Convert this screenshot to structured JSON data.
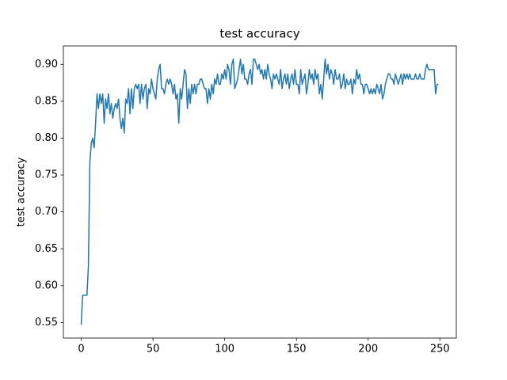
{
  "chart_data": {
    "type": "line",
    "title": "test accuracy",
    "y_label": "test accuracy",
    "color": "#1f77b4",
    "x": [
      0,
      1,
      2,
      3,
      4,
      5,
      6,
      7,
      8,
      9,
      10,
      11,
      12,
      13,
      14,
      15,
      16,
      17,
      18,
      19,
      20,
      21,
      22,
      23,
      24,
      25,
      26,
      27,
      28,
      29,
      30,
      31,
      32,
      33,
      34,
      35,
      36,
      37,
      38,
      39,
      40,
      41,
      42,
      43,
      44,
      45,
      46,
      47,
      48,
      49,
      50,
      51,
      52,
      53,
      54,
      55,
      56,
      57,
      58,
      59,
      60,
      61,
      62,
      63,
      64,
      65,
      66,
      67,
      68,
      69,
      70,
      71,
      72,
      73,
      74,
      75,
      76,
      77,
      78,
      79,
      80,
      81,
      82,
      83,
      84,
      85,
      86,
      87,
      88,
      89,
      90,
      91,
      92,
      93,
      94,
      95,
      96,
      97,
      98,
      99,
      100,
      101,
      102,
      103,
      104,
      105,
      106,
      107,
      108,
      109,
      110,
      111,
      112,
      113,
      114,
      115,
      116,
      117,
      118,
      119,
      120,
      121,
      122,
      123,
      124,
      125,
      126,
      127,
      128,
      129,
      130,
      131,
      132,
      133,
      134,
      135,
      136,
      137,
      138,
      139,
      140,
      141,
      142,
      143,
      144,
      145,
      146,
      147,
      148,
      149,
      150,
      151,
      152,
      153,
      154,
      155,
      156,
      157,
      158,
      159,
      160,
      161,
      162,
      163,
      164,
      165,
      166,
      167,
      168,
      169,
      170,
      171,
      172,
      173,
      174,
      175,
      176,
      177,
      178,
      179,
      180,
      181,
      182,
      183,
      184,
      185,
      186,
      187,
      188,
      189,
      190,
      191,
      192,
      193,
      194,
      195,
      196,
      197,
      198,
      199,
      200,
      201,
      202,
      203,
      204,
      205,
      206,
      207,
      208,
      209,
      210,
      211,
      212,
      213,
      214,
      215,
      216,
      217,
      218,
      219,
      220,
      221,
      222,
      223,
      224,
      225,
      226,
      227,
      228,
      229,
      230,
      231,
      232,
      233,
      234,
      235,
      236,
      237,
      238,
      239,
      240,
      241,
      242,
      243,
      244,
      245,
      246,
      247,
      248,
      249
    ],
    "values": [
      0.547,
      0.587,
      0.587,
      0.587,
      0.587,
      0.627,
      0.767,
      0.793,
      0.8,
      0.787,
      0.82,
      0.86,
      0.84,
      0.86,
      0.847,
      0.86,
      0.82,
      0.853,
      0.84,
      0.86,
      0.833,
      0.847,
      0.827,
      0.84,
      0.847,
      0.84,
      0.853,
      0.827,
      0.813,
      0.827,
      0.807,
      0.853,
      0.847,
      0.867,
      0.833,
      0.867,
      0.84,
      0.867,
      0.873,
      0.867,
      0.873,
      0.847,
      0.873,
      0.853,
      0.867,
      0.873,
      0.84,
      0.867,
      0.86,
      0.88,
      0.867,
      0.86,
      0.853,
      0.88,
      0.893,
      0.9,
      0.867,
      0.867,
      0.86,
      0.873,
      0.88,
      0.873,
      0.88,
      0.873,
      0.86,
      0.873,
      0.853,
      0.86,
      0.82,
      0.867,
      0.853,
      0.873,
      0.893,
      0.887,
      0.84,
      0.867,
      0.847,
      0.873,
      0.86,
      0.873,
      0.86,
      0.873,
      0.873,
      0.88,
      0.88,
      0.873,
      0.867,
      0.867,
      0.847,
      0.867,
      0.853,
      0.873,
      0.86,
      0.88,
      0.873,
      0.887,
      0.873,
      0.873,
      0.887,
      0.88,
      0.893,
      0.88,
      0.9,
      0.893,
      0.873,
      0.9,
      0.907,
      0.867,
      0.873,
      0.88,
      0.893,
      0.907,
      0.887,
      0.9,
      0.88,
      0.88,
      0.873,
      0.887,
      0.893,
      0.873,
      0.907,
      0.907,
      0.9,
      0.893,
      0.9,
      0.887,
      0.893,
      0.88,
      0.893,
      0.88,
      0.9,
      0.887,
      0.88,
      0.867,
      0.887,
      0.88,
      0.887,
      0.88,
      0.873,
      0.893,
      0.867,
      0.88,
      0.887,
      0.873,
      0.887,
      0.867,
      0.88,
      0.887,
      0.873,
      0.893,
      0.873,
      0.873,
      0.86,
      0.893,
      0.873,
      0.88,
      0.887,
      0.86,
      0.873,
      0.893,
      0.88,
      0.887,
      0.873,
      0.893,
      0.88,
      0.887,
      0.86,
      0.873,
      0.853,
      0.88,
      0.907,
      0.887,
      0.9,
      0.88,
      0.893,
      0.887,
      0.873,
      0.893,
      0.88,
      0.88,
      0.887,
      0.867,
      0.873,
      0.887,
      0.867,
      0.88,
      0.873,
      0.873,
      0.88,
      0.86,
      0.88,
      0.873,
      0.893,
      0.88,
      0.887,
      0.873,
      0.873,
      0.86,
      0.873,
      0.873,
      0.867,
      0.86,
      0.867,
      0.86,
      0.867,
      0.86,
      0.873,
      0.867,
      0.86,
      0.873,
      0.853,
      0.86,
      0.873,
      0.88,
      0.887,
      0.887,
      0.88,
      0.88,
      0.873,
      0.887,
      0.88,
      0.873,
      0.88,
      0.887,
      0.873,
      0.887,
      0.88,
      0.887,
      0.88,
      0.887,
      0.88,
      0.88,
      0.88,
      0.887,
      0.88,
      0.88,
      0.887,
      0.88,
      0.88,
      0.88,
      0.893,
      0.9,
      0.893,
      0.893,
      0.893,
      0.893,
      0.893,
      0.86,
      0.873,
      0.873
    ],
    "xlim": [
      -12.45,
      261.45
    ],
    "xticks": [
      0,
      50,
      100,
      150,
      200,
      250
    ],
    "ylim": [
      0.529,
      0.925
    ],
    "yticks": [
      0.55,
      {
        "value": 0.6,
        "label": "0.60"
      },
      0.65,
      {
        "value": 0.7,
        "label": "0.70"
      },
      0.75,
      {
        "value": 0.8,
        "label": "0.80"
      },
      0.85,
      {
        "value": 0.9,
        "label": "0.90"
      }
    ]
  }
}
